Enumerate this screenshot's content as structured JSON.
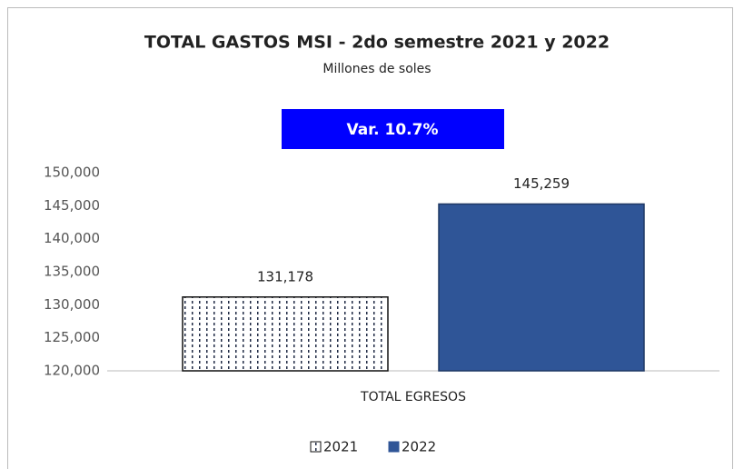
{
  "chart_data": {
    "type": "bar",
    "title": "TOTAL GASTOS MSI - 2do semestre 2021 y 2022",
    "subtitle": "Millones de soles",
    "annotation": "Var. 10.7%",
    "categories": [
      "TOTAL EGRESOS"
    ],
    "series": [
      {
        "name": "2021",
        "color": "#1f2a44",
        "hatch": "dots",
        "values": [
          131178
        ],
        "value_labels": [
          "131,178"
        ]
      },
      {
        "name": "2022",
        "color": "#2f5597",
        "values": [
          145259
        ],
        "value_labels": [
          "145,259"
        ]
      }
    ],
    "ylim": [
      120000,
      150000
    ],
    "yticks": [
      {
        "value": 120000,
        "label": "120,000"
      },
      {
        "value": 125000,
        "label": "125,000"
      },
      {
        "value": 130000,
        "label": "130,000"
      },
      {
        "value": 135000,
        "label": "135,000"
      },
      {
        "value": 140000,
        "label": "140,000"
      },
      {
        "value": 145000,
        "label": "145,000"
      },
      {
        "value": 150000,
        "label": "150,000"
      }
    ],
    "grid": false,
    "legend": "bottom"
  }
}
